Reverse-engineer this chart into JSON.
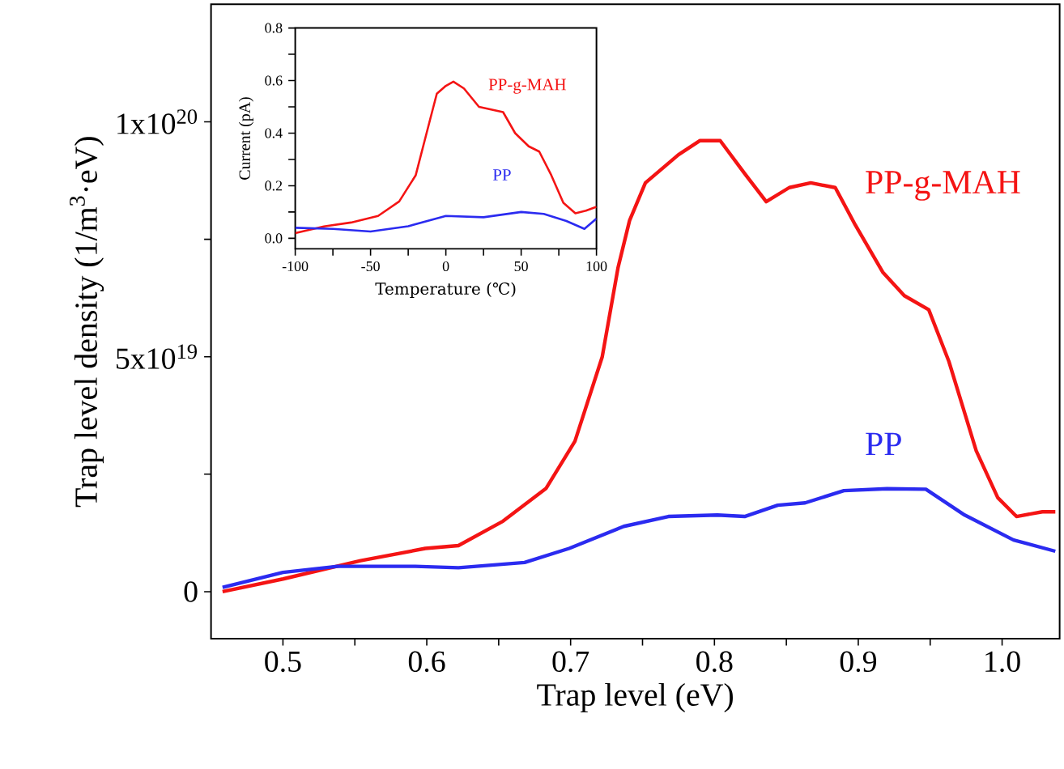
{
  "chart_data": [
    {
      "type": "line",
      "xlabel": "Trap level (eV)",
      "ylabel": "Trap level  density (1/m$^{3}$·eV)",
      "xlim": [
        0.45,
        1.04
      ],
      "ylim": [
        -1e+19,
        1.25e+20
      ],
      "xticks": [
        0.5,
        {
          "value": 0.55,
          "label": null
        },
        0.6,
        {
          "value": 0.65,
          "label": null
        },
        0.7,
        {
          "value": 0.75,
          "label": null
        },
        0.8,
        {
          "value": 0.85,
          "label": null
        },
        0.9,
        {
          "value": 0.95,
          "label": null
        },
        "1.0"
      ],
      "yticks": [
        0,
        {
          "value": 2.5e+19,
          "label": null
        },
        {
          "value": 5e+19,
          "label": "5x10$^{19}$"
        },
        {
          "value": 7.5e+19,
          "label": null
        },
        {
          "value": 1e+20,
          "label": "1x10$^{20}$"
        }
      ],
      "series": [
        {
          "name": "PP-g-MAH",
          "color": "#f41414",
          "x": [
            0.458,
            0.5,
            0.554,
            0.599,
            0.622,
            0.653,
            0.683,
            0.703,
            0.722,
            0.733,
            0.741,
            0.752,
            0.775,
            0.79,
            0.804,
            0.821,
            0.836,
            0.852,
            0.867,
            0.884,
            0.898,
            0.917,
            0.932,
            0.949,
            0.963,
            0.982,
            0.997,
            1.01,
            1.028,
            1.037
          ],
          "values": [
            0,
            2.7e+18,
            6.6e+18,
            9.2e+18,
            9.8e+18,
            1.5e+19,
            2.2e+19,
            3.2e+19,
            5e+19,
            6.9e+19,
            7.9e+19,
            8.7e+19,
            9.3e+19,
            9.6e+19,
            9.6e+19,
            8.9e+19,
            8.3e+19,
            8.6e+19,
            8.7e+19,
            8.6e+19,
            7.8e+19,
            6.8e+19,
            6.3e+19,
            6e+19,
            4.9e+19,
            3e+19,
            2e+19,
            1.6e+19,
            1.7e+19,
            1.7e+19
          ]
        },
        {
          "name": "PP",
          "color": "#2b2bf0",
          "x": [
            0.458,
            0.5,
            0.538,
            0.592,
            0.622,
            0.668,
            0.699,
            0.737,
            0.768,
            0.802,
            0.821,
            0.844,
            0.863,
            0.89,
            0.92,
            0.947,
            0.974,
            1.008,
            1.037
          ],
          "values": [
            9e+17,
            4.1e+18,
            5.4e+18,
            5.4e+18,
            5.1e+18,
            6.2e+18,
            9.2e+18,
            1.39e+19,
            1.6e+19,
            1.63e+19,
            1.6e+19,
            1.84e+19,
            1.89e+19,
            2.15e+19,
            2.19e+19,
            2.18e+19,
            1.63e+19,
            1.1e+19,
            8.6e+18
          ]
        }
      ]
    },
    {
      "type": "line",
      "xlabel": "Temperature (℃)",
      "ylabel": "Current (pA)",
      "xlim": [
        -100,
        100
      ],
      "ylim": [
        -0.04,
        0.8
      ],
      "xticks": [
        -100,
        {
          "value": -75,
          "label": null
        },
        -50,
        {
          "value": -25,
          "label": null
        },
        0,
        {
          "value": 25,
          "label": null
        },
        50,
        {
          "value": 75,
          "label": null
        },
        100
      ],
      "yticks": [
        "0.0",
        {
          "value": 0.1,
          "label": null
        },
        0.2,
        {
          "value": 0.3,
          "label": null
        },
        0.4,
        {
          "value": 0.5,
          "label": null
        },
        0.6,
        {
          "value": 0.7,
          "label": null
        },
        0.8
      ],
      "series": [
        {
          "name": "PP-g-MAH",
          "color": "#f41414",
          "x": [
            -100,
            -81,
            -63,
            -45,
            -31,
            -20,
            -11,
            -6,
            0,
            5,
            12,
            22,
            30,
            38,
            46,
            55,
            62,
            70,
            78,
            86,
            93,
            100
          ],
          "values": [
            0.02,
            0.045,
            0.06,
            0.085,
            0.14,
            0.24,
            0.44,
            0.55,
            0.58,
            0.596,
            0.57,
            0.5,
            0.49,
            0.48,
            0.4,
            0.35,
            0.33,
            0.24,
            0.135,
            0.095,
            0.105,
            0.12
          ]
        },
        {
          "name": "PP",
          "color": "#2b2bf0",
          "x": [
            -100,
            -75,
            -50,
            -25,
            0,
            25,
            50,
            65,
            80,
            92,
            100
          ],
          "values": [
            0.04,
            0.036,
            0.026,
            0.046,
            0.085,
            0.08,
            0.1,
            0.093,
            0.066,
            0.036,
            0.075
          ]
        }
      ]
    }
  ]
}
